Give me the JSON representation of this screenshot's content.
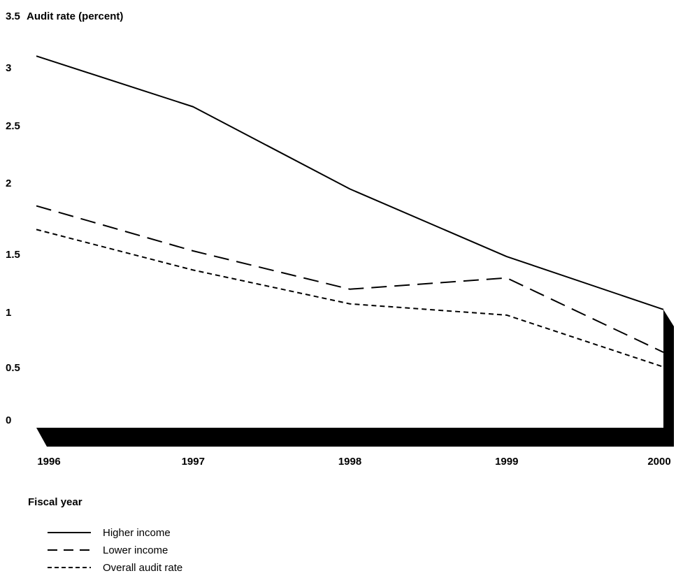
{
  "chart_data": {
    "type": "line",
    "title": "",
    "ylabel": "Audit rate (percent)",
    "xlabel": "Fiscal year",
    "x": [
      "1996",
      "1997",
      "1998",
      "1999",
      "2000"
    ],
    "ylim": [
      0,
      3.5
    ],
    "yticks": [
      "0",
      "0.5",
      "1",
      "1.5",
      "2",
      "2.5",
      "3",
      "3.5"
    ],
    "series": [
      {
        "name": "Higher income",
        "style": "solid",
        "values": [
          3.3,
          2.85,
          2.12,
          1.52,
          1.05
        ]
      },
      {
        "name": "Lower income",
        "style": "dashed",
        "values": [
          1.97,
          1.57,
          1.23,
          1.33,
          0.67
        ]
      },
      {
        "name": "Overall audit rate",
        "style": "dotted",
        "values": [
          1.76,
          1.4,
          1.1,
          1.0,
          0.54
        ]
      }
    ],
    "grid": false,
    "legend_position": "bottom-left",
    "colors": {
      "line": "#000000",
      "floor": "#000000"
    }
  }
}
